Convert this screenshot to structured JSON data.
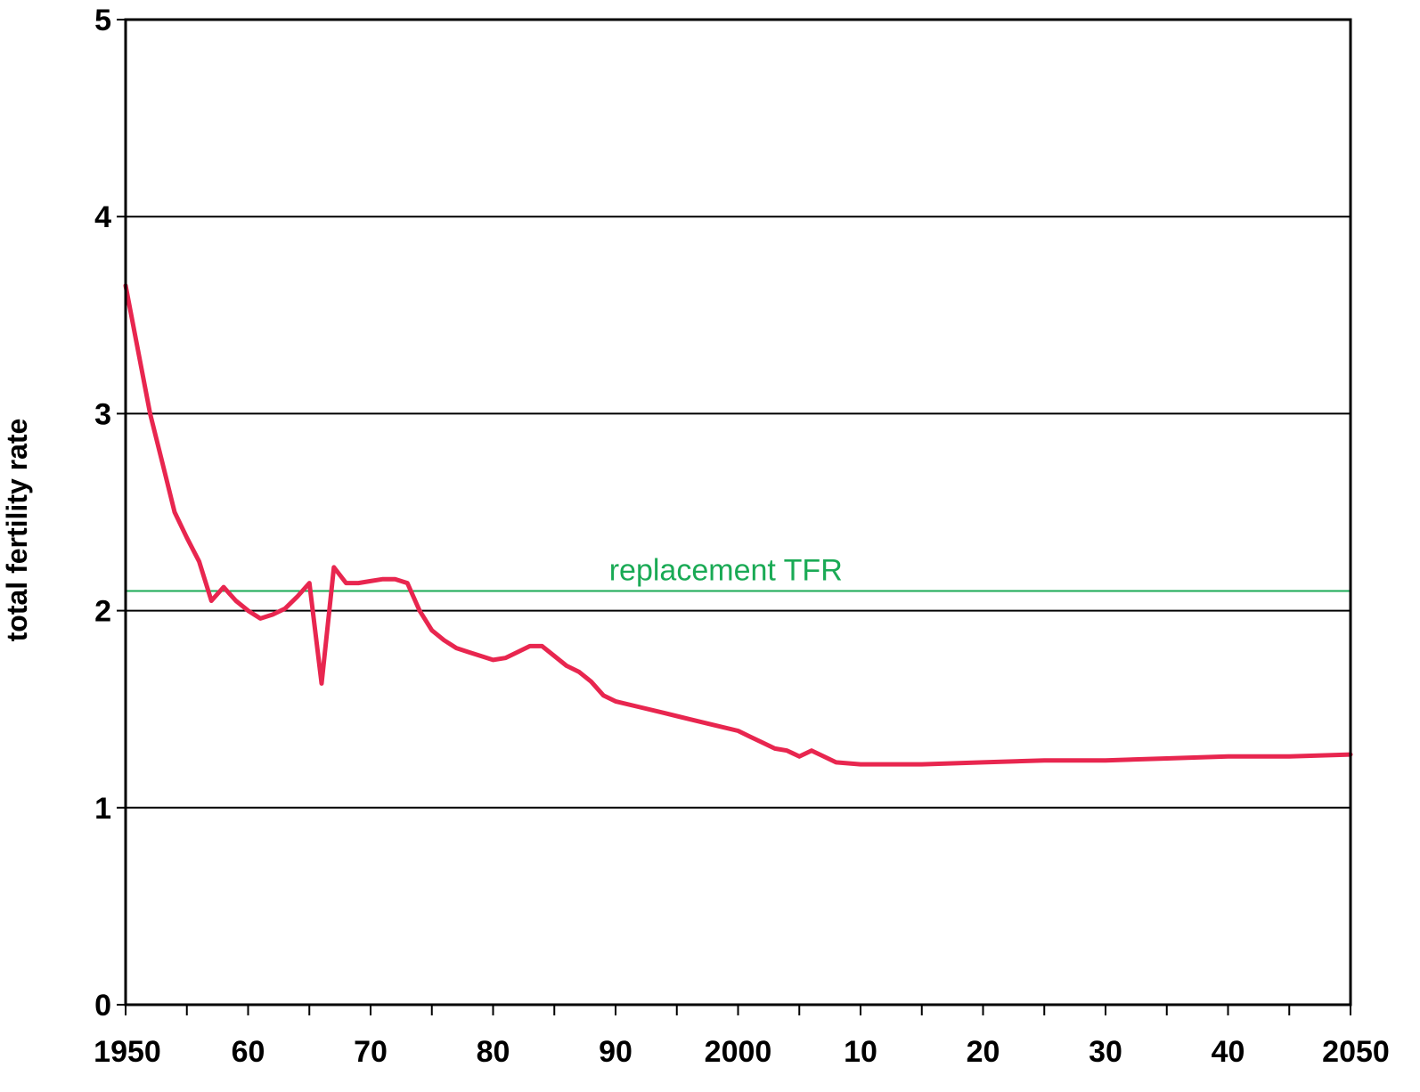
{
  "chart_data": {
    "type": "line",
    "ylabel": "total fertility rate",
    "xlabel": "",
    "xlim": [
      1950,
      2050
    ],
    "ylim": [
      0,
      5
    ],
    "grid": "horizontal",
    "x_ticks": [
      1950,
      1960,
      1970,
      1980,
      1990,
      2000,
      2010,
      2020,
      2030,
      2040,
      2050
    ],
    "x_tick_labels": [
      "1950",
      "60",
      "70",
      "80",
      "90",
      "2000",
      "10",
      "20",
      "30",
      "40",
      "2050"
    ],
    "y_ticks": [
      0,
      1,
      2,
      3,
      4,
      5
    ],
    "y_tick_labels": [
      "0",
      "1",
      "2",
      "3",
      "4",
      "5"
    ],
    "reference_line": {
      "label": "replacement TFR",
      "y": 2.1,
      "color": "#1aaa55"
    },
    "series": [
      {
        "color": "#e8264f",
        "x": [
          1950,
          1952,
          1953,
          1954,
          1955,
          1956,
          1957,
          1958,
          1959,
          1960,
          1961,
          1962,
          1963,
          1964,
          1965,
          1966,
          1967,
          1968,
          1969,
          1970,
          1971,
          1972,
          1973,
          1974,
          1975,
          1976,
          1977,
          1978,
          1979,
          1980,
          1981,
          1982,
          1983,
          1984,
          1985,
          1986,
          1987,
          1988,
          1989,
          1990,
          1992,
          1994,
          1996,
          1998,
          2000,
          2001,
          2002,
          2003,
          2004,
          2005,
          2006,
          2007,
          2008,
          2010,
          2012,
          2015,
          2020,
          2025,
          2030,
          2035,
          2040,
          2045,
          2050
        ],
        "y": [
          3.65,
          3.0,
          2.75,
          2.5,
          2.37,
          2.25,
          2.05,
          2.12,
          2.05,
          2.0,
          1.96,
          1.98,
          2.01,
          2.07,
          2.14,
          1.63,
          2.22,
          2.14,
          2.14,
          2.15,
          2.16,
          2.16,
          2.14,
          2.0,
          1.9,
          1.85,
          1.81,
          1.79,
          1.77,
          1.75,
          1.76,
          1.79,
          1.82,
          1.82,
          1.77,
          1.72,
          1.69,
          1.64,
          1.57,
          1.54,
          1.51,
          1.48,
          1.45,
          1.42,
          1.39,
          1.36,
          1.33,
          1.3,
          1.29,
          1.26,
          1.29,
          1.26,
          1.23,
          1.22,
          1.22,
          1.22,
          1.23,
          1.24,
          1.24,
          1.25,
          1.26,
          1.26,
          1.27
        ]
      }
    ]
  }
}
